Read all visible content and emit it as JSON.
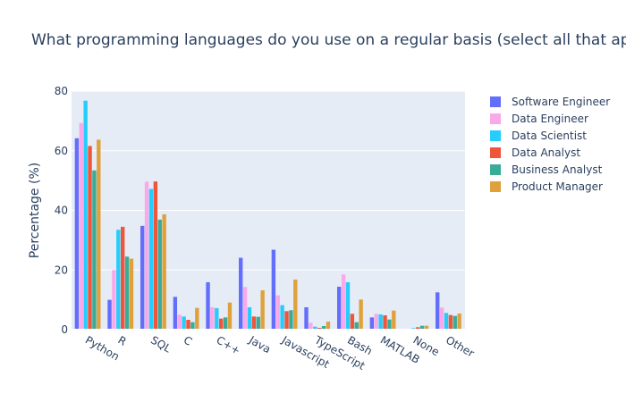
{
  "chart_data": {
    "type": "bar",
    "title": "What programming languages do you use on a regular basis (select all that apply)?",
    "xlabel": "",
    "ylabel": "Percentage (%)",
    "ylim": [
      0,
      80
    ],
    "yticks": [
      0,
      20,
      40,
      60,
      80
    ],
    "grid": true,
    "legend_position": "right",
    "categories": [
      "Python",
      "R",
      "SQL",
      "C",
      "C++",
      "Java",
      "Javascript",
      "TypeScript",
      "Bash",
      "MATLAB",
      "None",
      "Other"
    ],
    "series": [
      {
        "name": "Software Engineer",
        "color": "#636efa",
        "values": [
          64.2,
          10.0,
          34.8,
          11.0,
          15.9,
          24.1,
          26.8,
          7.5,
          14.4,
          4.1,
          0.3,
          12.5
        ]
      },
      {
        "name": "Data Engineer",
        "color": "#f9a8ea",
        "values": [
          69.3,
          20.0,
          49.6,
          5.0,
          7.5,
          14.3,
          11.5,
          2.3,
          18.5,
          5.3,
          0.2,
          7.4
        ]
      },
      {
        "name": "Data Scientist",
        "color": "#26cdfb",
        "values": [
          76.8,
          33.5,
          47.2,
          4.4,
          7.2,
          7.5,
          8.2,
          1.0,
          15.9,
          5.1,
          0.5,
          5.6
        ]
      },
      {
        "name": "Data Analyst",
        "color": "#ef553b",
        "values": [
          61.6,
          34.5,
          49.7,
          3.3,
          3.7,
          4.4,
          6.2,
          0.6,
          5.3,
          4.8,
          0.8,
          4.9
        ]
      },
      {
        "name": "Business Analyst",
        "color": "#3bab98",
        "values": [
          53.4,
          24.5,
          36.9,
          2.5,
          4.1,
          4.3,
          6.5,
          1.2,
          2.5,
          3.4,
          1.3,
          4.6
        ]
      },
      {
        "name": "Product Manager",
        "color": "#dfa13c",
        "values": [
          63.7,
          23.8,
          38.7,
          7.3,
          9.1,
          13.2,
          16.8,
          2.7,
          10.1,
          6.4,
          1.3,
          5.4
        ]
      }
    ]
  }
}
